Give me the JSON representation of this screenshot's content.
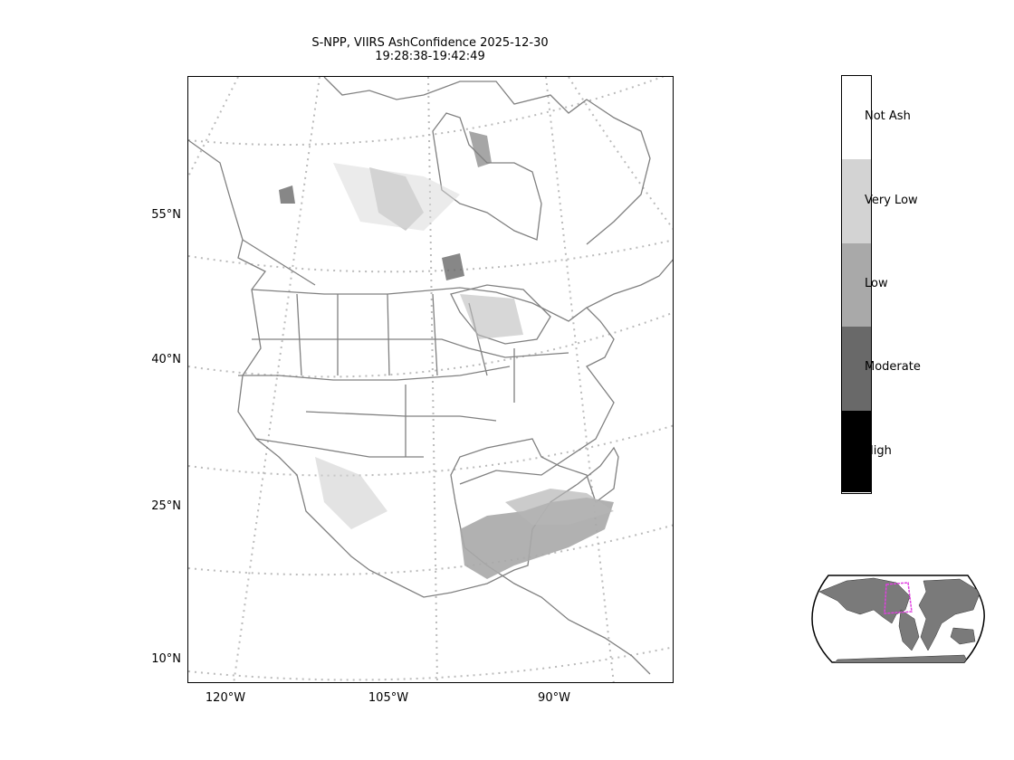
{
  "figure": {
    "title_line1": "S-NPP, VIIRS AshConfidence 2025-12-30",
    "title_line2": "19:28:38-19:42:49"
  },
  "axes": {
    "lat_labels": [
      "55°N",
      "40°N",
      "25°N",
      "10°N"
    ],
    "lon_labels": [
      "120°W",
      "105°W",
      "90°W"
    ]
  },
  "colorbar": {
    "classes": [
      {
        "label": "Not Ash",
        "color": "#ffffff"
      },
      {
        "label": "Very Low",
        "color": "#d3d3d3"
      },
      {
        "label": "Low",
        "color": "#a9a9a9"
      },
      {
        "label": "Moderate",
        "color": "#696969"
      },
      {
        "label": "High",
        "color": "#000000"
      }
    ]
  },
  "colors": {
    "coastline": "#808080",
    "gridline": "#bbbbbb",
    "land_inset": "#7a7a7a",
    "domain_box": "#e040e0"
  }
}
